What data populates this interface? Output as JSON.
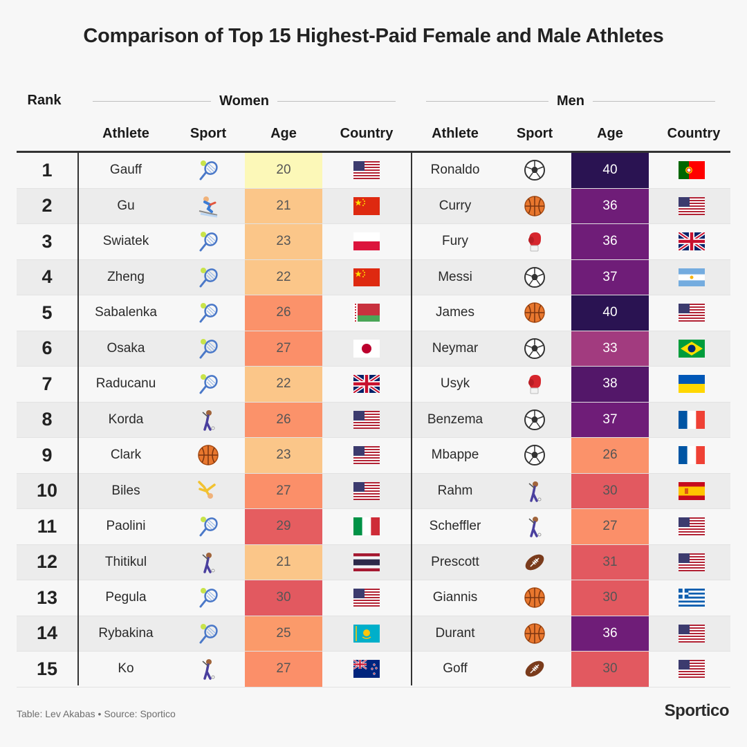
{
  "title": "Comparison of Top 15 Highest-Paid Female and Male Athletes",
  "headers": {
    "rank": "Rank",
    "women": "Women",
    "men": "Men",
    "athlete": "Athlete",
    "sport": "Sport",
    "age": "Age",
    "country": "Country"
  },
  "footer": {
    "credit": "Table: Lev Akabas • Source: Sportico",
    "brand": "Sportico"
  },
  "chart_data": {
    "type": "table",
    "columns": [
      "Rank",
      "Women Athlete",
      "Women Sport",
      "Women Age",
      "Women Country",
      "Men Athlete",
      "Men Sport",
      "Men Age",
      "Men Country"
    ],
    "rows": [
      {
        "rank": "1",
        "women": {
          "athlete": "Gauff",
          "sport": "tennis-icon",
          "age": "20",
          "country": "usa-flag"
        },
        "men": {
          "athlete": "Ronaldo",
          "sport": "soccer-ball-icon",
          "age": "40",
          "country": "portugal-flag"
        }
      },
      {
        "rank": "2",
        "women": {
          "athlete": "Gu",
          "sport": "skier-icon",
          "age": "21",
          "country": "china-flag"
        },
        "men": {
          "athlete": "Curry",
          "sport": "basketball-icon",
          "age": "36",
          "country": "usa-flag"
        }
      },
      {
        "rank": "3",
        "women": {
          "athlete": "Swiatek",
          "sport": "tennis-icon",
          "age": "23",
          "country": "poland-flag"
        },
        "men": {
          "athlete": "Fury",
          "sport": "boxing-glove-icon",
          "age": "36",
          "country": "uk-flag"
        }
      },
      {
        "rank": "4",
        "women": {
          "athlete": "Zheng",
          "sport": "tennis-icon",
          "age": "22",
          "country": "china-flag"
        },
        "men": {
          "athlete": "Messi",
          "sport": "soccer-ball-icon",
          "age": "37",
          "country": "argentina-flag"
        }
      },
      {
        "rank": "5",
        "women": {
          "athlete": "Sabalenka",
          "sport": "tennis-icon",
          "age": "26",
          "country": "belarus-flag"
        },
        "men": {
          "athlete": "James",
          "sport": "basketball-icon",
          "age": "40",
          "country": "usa-flag"
        }
      },
      {
        "rank": "6",
        "women": {
          "athlete": "Osaka",
          "sport": "tennis-icon",
          "age": "27",
          "country": "japan-flag"
        },
        "men": {
          "athlete": "Neymar",
          "sport": "soccer-ball-icon",
          "age": "33",
          "country": "brazil-flag"
        }
      },
      {
        "rank": "7",
        "women": {
          "athlete": "Raducanu",
          "sport": "tennis-icon",
          "age": "22",
          "country": "uk-flag"
        },
        "men": {
          "athlete": "Usyk",
          "sport": "boxing-glove-icon",
          "age": "38",
          "country": "ukraine-flag"
        }
      },
      {
        "rank": "8",
        "women": {
          "athlete": "Korda",
          "sport": "golfer-icon",
          "age": "26",
          "country": "usa-flag"
        },
        "men": {
          "athlete": "Benzema",
          "sport": "soccer-ball-icon",
          "age": "37",
          "country": "france-flag"
        }
      },
      {
        "rank": "9",
        "women": {
          "athlete": "Clark",
          "sport": "basketball-icon",
          "age": "23",
          "country": "usa-flag"
        },
        "men": {
          "athlete": "Mbappe",
          "sport": "soccer-ball-icon",
          "age": "26",
          "country": "france-flag"
        }
      },
      {
        "rank": "10",
        "women": {
          "athlete": "Biles",
          "sport": "gymnast-icon",
          "age": "27",
          "country": "usa-flag"
        },
        "men": {
          "athlete": "Rahm",
          "sport": "golfer-icon",
          "age": "30",
          "country": "spain-flag"
        }
      },
      {
        "rank": "11",
        "women": {
          "athlete": "Paolini",
          "sport": "tennis-icon",
          "age": "29",
          "country": "italy-flag"
        },
        "men": {
          "athlete": "Scheffler",
          "sport": "golfer-icon",
          "age": "27",
          "country": "usa-flag"
        }
      },
      {
        "rank": "12",
        "women": {
          "athlete": "Thitikul",
          "sport": "golfer-icon",
          "age": "21",
          "country": "thailand-flag"
        },
        "men": {
          "athlete": "Prescott",
          "sport": "football-icon",
          "age": "31",
          "country": "usa-flag"
        }
      },
      {
        "rank": "13",
        "women": {
          "athlete": "Pegula",
          "sport": "tennis-icon",
          "age": "30",
          "country": "usa-flag"
        },
        "men": {
          "athlete": "Giannis",
          "sport": "basketball-icon",
          "age": "30",
          "country": "greece-flag"
        }
      },
      {
        "rank": "14",
        "women": {
          "athlete": "Rybakina",
          "sport": "tennis-icon",
          "age": "25",
          "country": "kazakhstan-flag"
        },
        "men": {
          "athlete": "Durant",
          "sport": "basketball-icon",
          "age": "36",
          "country": "usa-flag"
        }
      },
      {
        "rank": "15",
        "women": {
          "athlete": "Ko",
          "sport": "golfer-icon",
          "age": "27",
          "country": "new-zealand-flag"
        },
        "men": {
          "athlete": "Goff",
          "sport": "football-icon",
          "age": "30",
          "country": "usa-flag"
        }
      }
    ]
  },
  "colors": {
    "age_scale": {
      "20": "#fcf8b8",
      "21": "#fbc689",
      "22": "#fbc689",
      "23": "#fbc689",
      "25": "#fb9a6a",
      "26": "#fb926a",
      "27": "#fb8f69",
      "29": "#e55d60",
      "30": "#e25960",
      "31": "#e25960",
      "33": "#a23b7f",
      "36": "#6f1d78",
      "37": "#6f1d78",
      "38": "#531769",
      "40": "#2a1352"
    },
    "dark_text_threshold": 33
  }
}
